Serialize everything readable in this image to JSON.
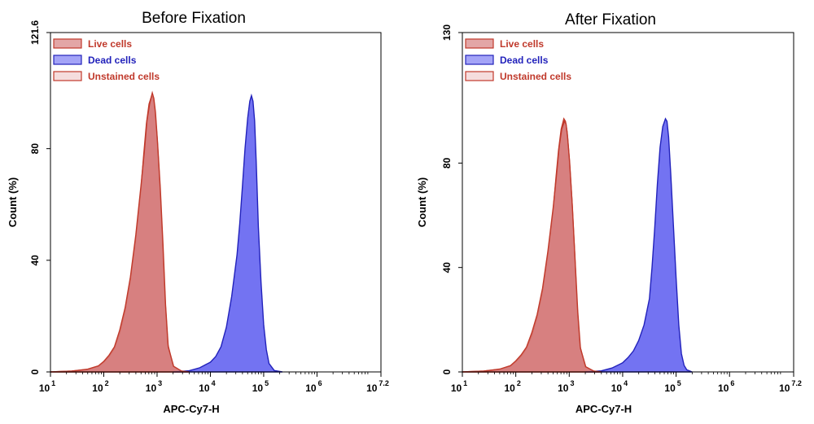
{
  "chart_data": [
    {
      "type": "area",
      "title": "Before Fixation",
      "xlabel": "APC-Cy7-H",
      "ylabel": "Count  (%)",
      "x_scale": "log",
      "xlim": [
        1,
        7.2
      ],
      "ylim": [
        0,
        121.6
      ],
      "x_ticks": [
        {
          "base": "10",
          "exp": "1"
        },
        {
          "base": "10",
          "exp": "2"
        },
        {
          "base": "10",
          "exp": "3"
        },
        {
          "base": "10",
          "exp": "4"
        },
        {
          "base": "10",
          "exp": "5"
        },
        {
          "base": "10",
          "exp": "6"
        },
        {
          "base": "10",
          "exp": "7.2"
        }
      ],
      "y_ticks": [
        "0",
        "40",
        "80",
        "121.6"
      ],
      "legend_position": "top-left",
      "series": [
        {
          "name": "Live cells",
          "color": "#c0392b",
          "fill": "#c03a3a",
          "x": [
            1.0,
            1.4,
            1.7,
            1.9,
            2.0,
            2.1,
            2.2,
            2.3,
            2.4,
            2.5,
            2.6,
            2.7,
            2.75,
            2.8,
            2.85,
            2.9,
            2.93,
            2.96,
            3.0,
            3.05,
            3.1,
            3.15,
            3.2,
            3.3,
            3.45,
            3.6
          ],
          "values": [
            0,
            0.3,
            0.9,
            2.0,
            3.5,
            5.5,
            8.5,
            14,
            22,
            33,
            48,
            66,
            78,
            89,
            96,
            99,
            98,
            94,
            84,
            68,
            48,
            26,
            10,
            2,
            0.3,
            0
          ]
        },
        {
          "name": "Dead cells",
          "color": "#2222bb",
          "fill": "#5a5af0",
          "x": [
            3.3,
            3.6,
            3.8,
            4.0,
            4.1,
            4.2,
            4.3,
            4.4,
            4.5,
            4.55,
            4.6,
            4.65,
            4.7,
            4.74,
            4.77,
            4.8,
            4.83,
            4.86,
            4.9,
            4.95,
            5.0,
            5.05,
            5.1,
            5.2,
            5.35
          ],
          "values": [
            0,
            0.4,
            1.5,
            3.5,
            5.5,
            9,
            16,
            27,
            42,
            53,
            66,
            80,
            91,
            97,
            99,
            97,
            90,
            75,
            52,
            32,
            17,
            8,
            3,
            0.5,
            0
          ]
        },
        {
          "name": "Unstained cells",
          "color": "#c0392b",
          "fill": "#e8b4b4",
          "x": [
            1.0,
            1.4,
            1.7,
            1.9,
            2.0,
            2.1,
            2.2,
            2.3,
            2.4,
            2.5,
            2.6,
            2.7,
            2.76,
            2.81,
            2.86,
            2.91,
            2.94,
            2.97,
            3.01,
            3.06,
            3.11,
            3.16,
            3.21,
            3.31,
            3.46,
            3.6
          ],
          "values": [
            0,
            0.3,
            1.0,
            2.2,
            3.8,
            6,
            9,
            15,
            23,
            34,
            49,
            67,
            79,
            90,
            96,
            100,
            98,
            93,
            82,
            66,
            46,
            24,
            9,
            2,
            0.3,
            0
          ]
        }
      ]
    },
    {
      "type": "area",
      "title": "After Fixation",
      "xlabel": "APC-Cy7-H",
      "ylabel": "Count  (%)",
      "x_scale": "log",
      "xlim": [
        1,
        7.2
      ],
      "ylim": [
        0,
        130
      ],
      "x_ticks": [
        {
          "base": "10",
          "exp": "1"
        },
        {
          "base": "10",
          "exp": "2"
        },
        {
          "base": "10",
          "exp": "3"
        },
        {
          "base": "10",
          "exp": "4"
        },
        {
          "base": "10",
          "exp": "5"
        },
        {
          "base": "10",
          "exp": "6"
        },
        {
          "base": "10",
          "exp": "7.2"
        }
      ],
      "y_ticks": [
        "0",
        "40",
        "80",
        "130"
      ],
      "legend_position": "top-left",
      "series": [
        {
          "name": "Live cells",
          "color": "#c0392b",
          "fill": "#c03a3a",
          "x": [
            1.0,
            1.4,
            1.7,
            1.9,
            2.0,
            2.1,
            2.2,
            2.3,
            2.4,
            2.5,
            2.6,
            2.7,
            2.75,
            2.8,
            2.85,
            2.9,
            2.93,
            2.96,
            3.0,
            3.05,
            3.1,
            3.15,
            3.2,
            3.3,
            3.45,
            3.6
          ],
          "values": [
            0,
            0.3,
            1.0,
            2.2,
            4,
            6,
            9,
            14,
            21,
            31,
            45,
            62,
            74,
            85,
            93,
            97,
            96,
            92,
            82,
            66,
            46,
            25,
            10,
            2,
            0.3,
            0
          ]
        },
        {
          "name": "Dead cells",
          "color": "#2222bb",
          "fill": "#5a5af0",
          "x": [
            3.3,
            3.6,
            3.8,
            4.0,
            4.1,
            4.2,
            4.3,
            4.4,
            4.5,
            4.55,
            4.6,
            4.65,
            4.7,
            4.75,
            4.8,
            4.83,
            4.86,
            4.9,
            4.95,
            5.0,
            5.05,
            5.1,
            5.15,
            5.2,
            5.3
          ],
          "values": [
            0,
            0.4,
            1.5,
            3.5,
            5.5,
            8,
            12,
            18,
            28,
            40,
            55,
            72,
            86,
            94,
            97,
            96,
            90,
            76,
            56,
            36,
            18,
            7,
            2.5,
            0.8,
            0
          ]
        },
        {
          "name": "Unstained cells",
          "color": "#c0392b",
          "fill": "#e8b4b4",
          "x": [
            1.0,
            1.4,
            1.7,
            1.9,
            2.0,
            2.1,
            2.2,
            2.3,
            2.4,
            2.5,
            2.6,
            2.7,
            2.76,
            2.81,
            2.86,
            2.91,
            2.94,
            2.97,
            3.01,
            3.06,
            3.11,
            3.16,
            3.21,
            3.31,
            3.46,
            3.6
          ],
          "values": [
            0,
            0.3,
            1.1,
            2.4,
            4.2,
            6.5,
            9.5,
            15,
            22,
            32,
            46,
            63,
            75,
            86,
            93,
            96,
            95,
            90,
            80,
            63,
            43,
            23,
            9,
            2,
            0.3,
            0
          ]
        }
      ]
    }
  ]
}
